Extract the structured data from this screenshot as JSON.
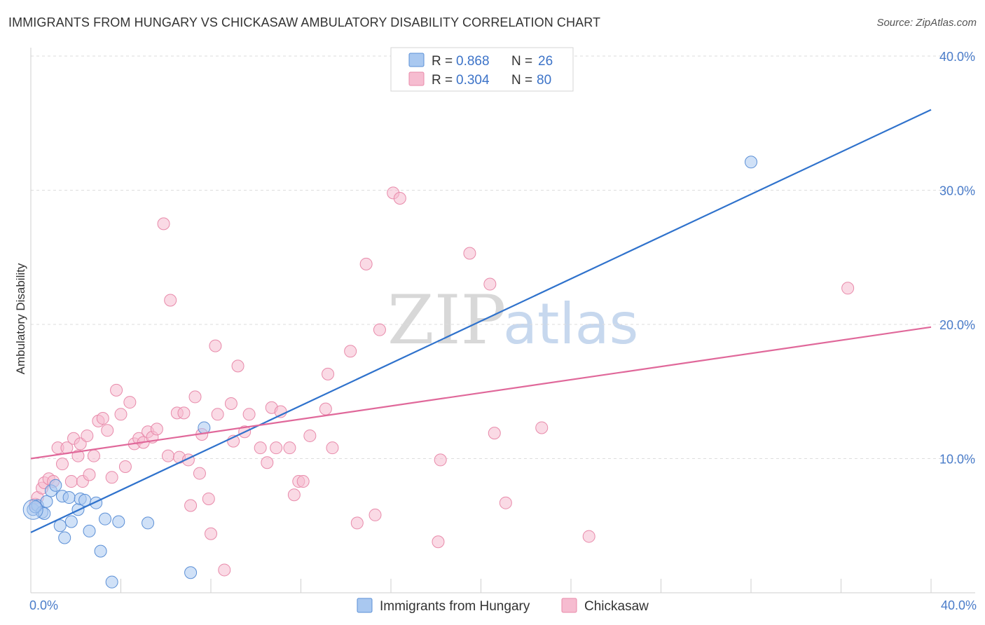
{
  "header": {
    "title": "IMMIGRANTS FROM HUNGARY VS CHICKASAW AMBULATORY DISABILITY CORRELATION CHART",
    "source": "Source: ZipAtlas.com"
  },
  "watermark": {
    "zip": "ZIP",
    "atlas": "atlas"
  },
  "legend": {
    "rows": [
      {
        "r_label": "R =",
        "r_value": "0.868",
        "n_label": "N =",
        "n_value": "26"
      },
      {
        "r_label": "R =",
        "r_value": "0.304",
        "n_label": "N =",
        "n_value": "80"
      }
    ]
  },
  "colors": {
    "hungary_fill": "#a9c8f0",
    "hungary_stroke": "#5b8fd6",
    "hungary_line": "#2f72cc",
    "chickasaw_fill": "#f6bcd0",
    "chickasaw_stroke": "#e88aaa",
    "chickasaw_line": "#e0689a",
    "grid": "#dddddd",
    "axis_text": "#4a7cc9"
  },
  "chart_data": {
    "type": "scatter",
    "title": "IMMIGRANTS FROM HUNGARY VS CHICKASAW AMBULATORY DISABILITY CORRELATION CHART",
    "xlabel": "",
    "ylabel": "Ambulatory Disability",
    "xlim": [
      0,
      40
    ],
    "ylim": [
      0,
      40
    ],
    "y_ticks": [
      "10.0%",
      "20.0%",
      "30.0%",
      "40.0%"
    ],
    "y_tick_values": [
      10,
      20,
      30,
      40
    ],
    "x_tick_labels": [
      "0.0%",
      "40.0%"
    ],
    "grid": true,
    "legend_position": "bottom-center",
    "series": [
      {
        "name": "Immigrants from Hungary",
        "R": 0.868,
        "N": 26,
        "trend": {
          "x": [
            0,
            40
          ],
          "y": [
            4.5,
            36.0
          ]
        },
        "points": [
          [
            0.1,
            6.2
          ],
          [
            0.3,
            6.5
          ],
          [
            0.5,
            6.0
          ],
          [
            0.6,
            5.9
          ],
          [
            0.7,
            6.8
          ],
          [
            0.9,
            7.6
          ],
          [
            1.1,
            8.0
          ],
          [
            1.3,
            5.0
          ],
          [
            1.4,
            7.2
          ],
          [
            1.5,
            4.1
          ],
          [
            1.7,
            7.1
          ],
          [
            1.8,
            5.3
          ],
          [
            2.1,
            6.2
          ],
          [
            2.2,
            7.0
          ],
          [
            2.4,
            6.9
          ],
          [
            2.6,
            4.6
          ],
          [
            2.9,
            6.7
          ],
          [
            3.1,
            3.1
          ],
          [
            3.3,
            5.5
          ],
          [
            3.6,
            0.8
          ],
          [
            3.9,
            5.3
          ],
          [
            5.2,
            5.2
          ],
          [
            7.1,
            1.5
          ],
          [
            7.7,
            12.3
          ],
          [
            32.0,
            32.1
          ],
          [
            0.2,
            6.4
          ]
        ]
      },
      {
        "name": "Chickasaw",
        "R": 0.304,
        "N": 80,
        "trend": {
          "x": [
            0,
            40
          ],
          "y": [
            10.0,
            19.8
          ]
        },
        "points": [
          [
            0.2,
            6.6
          ],
          [
            0.3,
            7.1
          ],
          [
            0.5,
            7.8
          ],
          [
            0.6,
            8.2
          ],
          [
            0.8,
            8.5
          ],
          [
            1.0,
            8.3
          ],
          [
            1.2,
            10.8
          ],
          [
            1.4,
            9.6
          ],
          [
            1.6,
            10.8
          ],
          [
            1.8,
            8.3
          ],
          [
            1.9,
            11.5
          ],
          [
            2.1,
            10.2
          ],
          [
            2.2,
            11.1
          ],
          [
            2.3,
            8.3
          ],
          [
            2.5,
            11.7
          ],
          [
            2.6,
            8.8
          ],
          [
            2.8,
            10.2
          ],
          [
            3.0,
            12.8
          ],
          [
            3.2,
            13.0
          ],
          [
            3.4,
            12.1
          ],
          [
            3.6,
            8.6
          ],
          [
            3.8,
            15.1
          ],
          [
            4.0,
            13.3
          ],
          [
            4.2,
            9.4
          ],
          [
            4.4,
            14.2
          ],
          [
            4.6,
            11.1
          ],
          [
            4.8,
            11.5
          ],
          [
            5.0,
            11.2
          ],
          [
            5.2,
            12.0
          ],
          [
            5.4,
            11.6
          ],
          [
            5.6,
            12.2
          ],
          [
            5.9,
            27.5
          ],
          [
            6.1,
            10.2
          ],
          [
            6.2,
            21.8
          ],
          [
            6.5,
            13.4
          ],
          [
            6.6,
            10.1
          ],
          [
            6.8,
            13.4
          ],
          [
            7.0,
            9.9
          ],
          [
            7.1,
            6.5
          ],
          [
            7.3,
            14.6
          ],
          [
            7.5,
            8.9
          ],
          [
            7.6,
            11.8
          ],
          [
            7.9,
            7.0
          ],
          [
            8.0,
            4.4
          ],
          [
            8.2,
            18.4
          ],
          [
            8.3,
            13.3
          ],
          [
            8.6,
            1.7
          ],
          [
            8.9,
            14.1
          ],
          [
            9.0,
            11.3
          ],
          [
            9.2,
            16.9
          ],
          [
            9.5,
            12.0
          ],
          [
            9.7,
            13.3
          ],
          [
            10.2,
            10.8
          ],
          [
            10.5,
            9.7
          ],
          [
            10.7,
            13.8
          ],
          [
            10.9,
            10.8
          ],
          [
            11.1,
            13.5
          ],
          [
            11.5,
            10.8
          ],
          [
            11.7,
            7.3
          ],
          [
            11.9,
            8.3
          ],
          [
            12.1,
            8.3
          ],
          [
            12.4,
            11.7
          ],
          [
            13.1,
            13.7
          ],
          [
            13.2,
            16.3
          ],
          [
            13.4,
            10.8
          ],
          [
            14.2,
            18.0
          ],
          [
            14.5,
            5.2
          ],
          [
            14.9,
            24.5
          ],
          [
            15.3,
            5.8
          ],
          [
            15.5,
            19.6
          ],
          [
            16.1,
            29.8
          ],
          [
            16.4,
            29.4
          ],
          [
            18.1,
            3.8
          ],
          [
            18.2,
            9.9
          ],
          [
            19.5,
            25.3
          ],
          [
            20.4,
            23.0
          ],
          [
            20.6,
            11.9
          ],
          [
            21.1,
            6.7
          ],
          [
            22.7,
            12.3
          ],
          [
            24.8,
            4.2
          ],
          [
            36.3,
            22.7
          ]
        ]
      }
    ]
  }
}
